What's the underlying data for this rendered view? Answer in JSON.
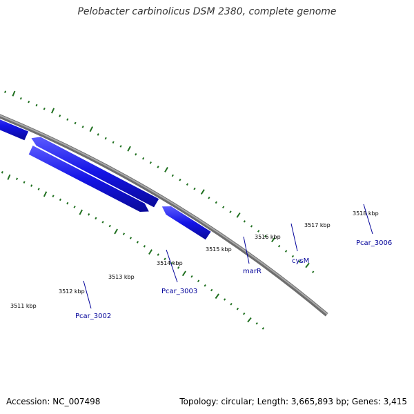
{
  "title": "Pelobacter carbinolicus DSM 2380, complete genome",
  "footer": {
    "accession": "Accession: NC_007498",
    "stats": "Topology: circular; Length: 3,665,893 bp; Genes: 3,415"
  },
  "scale_labels": [
    "3511 kbp",
    "3512 kbp",
    "3513 kbp",
    "3514 kbp",
    "3515 kbp",
    "3516 kbp",
    "3517 kbp",
    "3518 kbp"
  ],
  "gene_labels": [
    "Pcar_3002",
    "Pcar_3003",
    "marR",
    "cysM",
    "Pcar_3006"
  ],
  "colors": {
    "backbone": "#8a8a8a",
    "cds": "#1010e0",
    "cog_green": "#30e8a0",
    "cog_lime": "#a8e040",
    "cog_orange": "#ff8c10",
    "cog_steel": "#4a88c0",
    "tick": "#207020",
    "gene_label": "#000099"
  }
}
